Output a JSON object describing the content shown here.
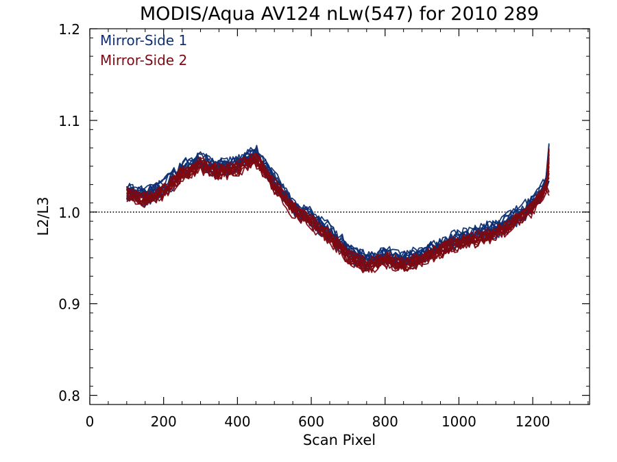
{
  "chart_data": {
    "type": "line",
    "title": "MODIS/Aqua AV124 nLw(547) for 2010 289",
    "xlabel": "Scan Pixel",
    "ylabel": "L2/L3",
    "xlim": [
      0,
      1354
    ],
    "ylim": [
      0.79,
      1.2
    ],
    "xticks": [
      "0",
      "200",
      "400",
      "600",
      "800",
      "1000",
      "1200"
    ],
    "yticks": [
      "0.8",
      "0.9",
      "1.0",
      "1.1",
      "1.2"
    ],
    "reference_line": {
      "y": 1.0,
      "style": "dotted"
    },
    "legend": {
      "position": "top-left",
      "entries": [
        "Mirror-Side 1",
        "Mirror-Side 2"
      ]
    },
    "colors": {
      "Mirror-Side 1": "#0d2f73",
      "Mirror-Side 2": "#7d0a12"
    },
    "x": [
      100,
      150,
      200,
      250,
      300,
      350,
      400,
      450,
      500,
      550,
      600,
      650,
      700,
      750,
      800,
      850,
      900,
      950,
      1000,
      1050,
      1100,
      1150,
      1200,
      1250
    ],
    "series": [
      {
        "name": "Mirror-Side 1",
        "values": [
          1.023,
          1.017,
          1.025,
          1.046,
          1.055,
          1.047,
          1.052,
          1.063,
          1.033,
          1.007,
          0.993,
          0.977,
          0.957,
          0.945,
          0.952,
          0.946,
          0.953,
          0.962,
          0.97,
          0.975,
          0.981,
          0.993,
          1.008,
          1.04
        ]
      },
      {
        "name": "Mirror-Side 2",
        "values": [
          1.021,
          1.015,
          1.023,
          1.044,
          1.053,
          1.045,
          1.05,
          1.06,
          1.031,
          1.005,
          0.991,
          0.975,
          0.955,
          0.943,
          0.95,
          0.944,
          0.951,
          0.96,
          0.968,
          0.973,
          0.979,
          0.991,
          1.006,
          1.038
        ]
      }
    ]
  }
}
